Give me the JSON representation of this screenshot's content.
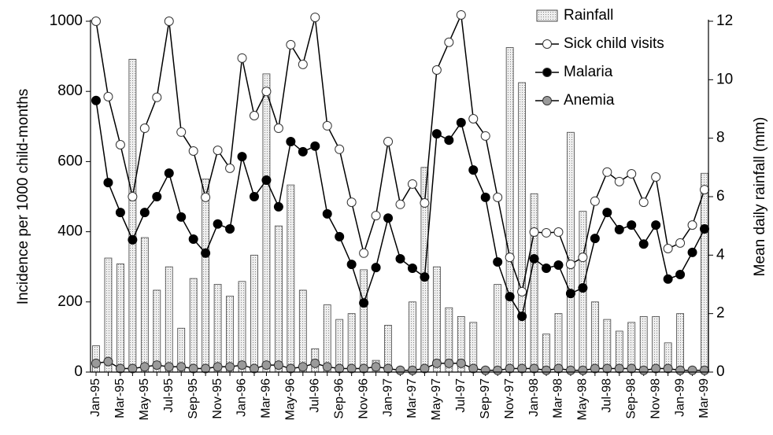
{
  "chart_data": {
    "type": "bar-line",
    "y_label": "Incidence per 1000 child-months",
    "y2_label": "Mean daily rainfall (mm)",
    "categories": [
      "Jan-95",
      null,
      "Mar-95",
      null,
      "May-95",
      null,
      "Jul-95",
      null,
      "Sep-95",
      null,
      "Nov-95",
      null,
      "Jan-96",
      null,
      "Mar-96",
      null,
      "May-96",
      null,
      "Jul-96",
      null,
      "Sep-96",
      null,
      "Nov-96",
      null,
      "Jan-97",
      null,
      "Mar-97",
      null,
      "May-97",
      null,
      "Jul-97",
      null,
      "Sep-97",
      null,
      "Nov-97",
      null,
      "Jan-98",
      null,
      "Mar-98",
      null,
      "May-98",
      null,
      "Jul-98",
      null,
      "Sep-98",
      null,
      "Nov-98",
      null,
      "Jan-99",
      null,
      "Mar-99"
    ],
    "ylim": [
      0,
      1000
    ],
    "yticks": [
      0,
      200,
      400,
      600,
      800,
      1000
    ],
    "y2lim": [
      0,
      12
    ],
    "y2ticks": [
      0,
      2,
      4,
      6,
      8,
      10,
      12
    ],
    "legend": "upper right",
    "series": [
      {
        "name": "Rainfall",
        "type": "bar",
        "axis": "y2",
        "color": "#dcdcdc",
        "values": [
          0.9,
          3.9,
          3.7,
          10.7,
          4.6,
          2.8,
          3.6,
          1.5,
          3.2,
          6.6,
          3.0,
          2.6,
          3.1,
          4.0,
          10.2,
          5.0,
          6.4,
          2.8,
          0.8,
          2.3,
          1.8,
          2.0,
          3.5,
          0.4,
          1.6,
          0,
          2.4,
          7.0,
          3.6,
          2.2,
          1.9,
          1.7,
          0,
          3.0,
          11.1,
          9.9,
          6.1,
          1.3,
          2.0,
          8.2,
          5.5,
          2.4,
          1.8,
          1.4,
          1.7,
          1.9,
          1.9,
          1.0,
          2.0,
          0,
          6.8
        ]
      },
      {
        "name": "Sick child visits",
        "type": "line",
        "color": "#ffffff",
        "values": [
          1000,
          785,
          648,
          500,
          695,
          783,
          1000,
          684,
          630,
          498,
          632,
          581,
          895,
          731,
          800,
          695,
          933,
          877,
          1011,
          702,
          635,
          484,
          339,
          446,
          657,
          478,
          536,
          482,
          861,
          940,
          1018,
          722,
          673,
          498,
          327,
          229,
          399,
          397,
          399,
          307,
          327,
          487,
          570,
          543,
          565,
          484,
          556,
          352,
          368,
          419,
          520
        ]
      },
      {
        "name": "Malaria",
        "type": "line",
        "color": "#000000",
        "values": [
          774,
          540,
          455,
          377,
          455,
          500,
          567,
          442,
          379,
          339,
          422,
          408,
          614,
          500,
          547,
          471,
          657,
          628,
          644,
          451,
          386,
          307,
          197,
          298,
          439,
          323,
          296,
          271,
          679,
          661,
          711,
          576,
          498,
          314,
          215,
          159,
          323,
          296,
          305,
          224,
          240,
          381,
          455,
          406,
          419,
          365,
          419,
          265,
          278,
          341,
          408
        ]
      },
      {
        "name": "Anemia",
        "type": "line",
        "color": "#9a9a9a",
        "values": [
          25,
          30,
          10,
          10,
          15,
          20,
          15,
          15,
          10,
          10,
          15,
          15,
          20,
          10,
          20,
          20,
          10,
          15,
          25,
          15,
          10,
          10,
          10,
          15,
          10,
          5,
          5,
          10,
          25,
          25,
          25,
          10,
          5,
          5,
          10,
          10,
          10,
          5,
          10,
          5,
          5,
          10,
          10,
          10,
          10,
          5,
          10,
          10,
          5,
          5,
          5
        ]
      }
    ]
  }
}
